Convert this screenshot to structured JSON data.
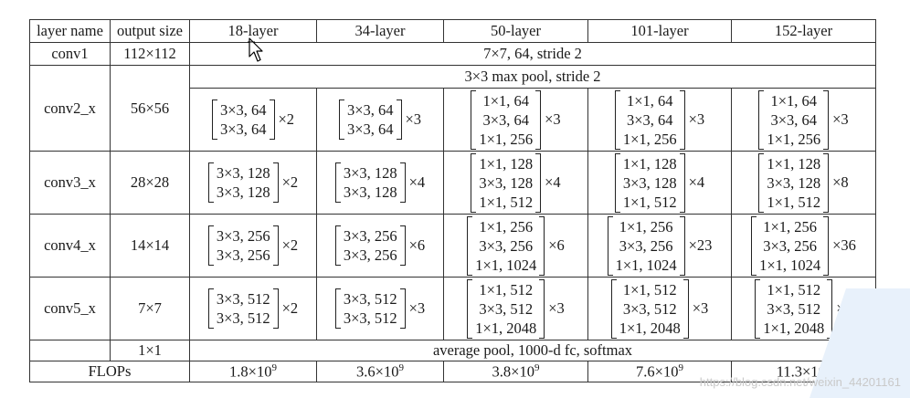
{
  "headers": [
    "layer name",
    "output size",
    "18-layer",
    "34-layer",
    "50-layer",
    "101-layer",
    "152-layer"
  ],
  "conv1": {
    "name": "conv1",
    "size": "112×112",
    "desc": "7×7, 64, stride 2"
  },
  "pool": {
    "desc": "3×3 max pool, stride 2"
  },
  "stages": [
    {
      "name": "conv2_x",
      "size": "56×56",
      "cells": [
        {
          "lines": [
            "3×3, 64",
            "3×3, 64"
          ],
          "mult": "×2"
        },
        {
          "lines": [
            "3×3, 64",
            "3×3, 64"
          ],
          "mult": "×3"
        },
        {
          "lines": [
            "1×1, 64",
            "3×3, 64",
            "1×1, 256"
          ],
          "mult": "×3"
        },
        {
          "lines": [
            "1×1, 64",
            "3×3, 64",
            "1×1, 256"
          ],
          "mult": "×3"
        },
        {
          "lines": [
            "1×1, 64",
            "3×3, 64",
            "1×1, 256"
          ],
          "mult": "×3"
        }
      ]
    },
    {
      "name": "conv3_x",
      "size": "28×28",
      "cells": [
        {
          "lines": [
            "3×3, 128",
            "3×3, 128"
          ],
          "mult": "×2"
        },
        {
          "lines": [
            "3×3, 128",
            "3×3, 128"
          ],
          "mult": "×4"
        },
        {
          "lines": [
            "1×1, 128",
            "3×3, 128",
            "1×1, 512"
          ],
          "mult": "×4"
        },
        {
          "lines": [
            "1×1, 128",
            "3×3, 128",
            "1×1, 512"
          ],
          "mult": "×4"
        },
        {
          "lines": [
            "1×1, 128",
            "3×3, 128",
            "1×1, 512"
          ],
          "mult": "×8"
        }
      ]
    },
    {
      "name": "conv4_x",
      "size": "14×14",
      "cells": [
        {
          "lines": [
            "3×3, 256",
            "3×3, 256"
          ],
          "mult": "×2"
        },
        {
          "lines": [
            "3×3, 256",
            "3×3, 256"
          ],
          "mult": "×6"
        },
        {
          "lines": [
            "1×1, 256",
            "3×3, 256",
            "1×1, 1024"
          ],
          "mult": "×6"
        },
        {
          "lines": [
            "1×1, 256",
            "3×3, 256",
            "1×1, 1024"
          ],
          "mult": "×23"
        },
        {
          "lines": [
            "1×1, 256",
            "3×3, 256",
            "1×1, 1024"
          ],
          "mult": "×36"
        }
      ]
    },
    {
      "name": "conv5_x",
      "size": "7×7",
      "cells": [
        {
          "lines": [
            "3×3, 512",
            "3×3, 512"
          ],
          "mult": "×2"
        },
        {
          "lines": [
            "3×3, 512",
            "3×3, 512"
          ],
          "mult": "×3"
        },
        {
          "lines": [
            "1×1, 512",
            "3×3, 512",
            "1×1, 2048"
          ],
          "mult": "×3"
        },
        {
          "lines": [
            "1×1, 512",
            "3×3, 512",
            "1×1, 2048"
          ],
          "mult": "×3"
        },
        {
          "lines": [
            "1×1, 512",
            "3×3, 512",
            "1×1, 2048"
          ],
          "mult": "×3"
        }
      ]
    }
  ],
  "avg": {
    "size": "1×1",
    "desc": "average pool, 1000-d fc, softmax"
  },
  "flops": {
    "label": "FLOPs",
    "values": [
      {
        "base": "1.8×10",
        "exp": "9"
      },
      {
        "base": "3.6×10",
        "exp": "9"
      },
      {
        "base": "3.8×10",
        "exp": "9"
      },
      {
        "base": "7.6×10",
        "exp": "9"
      },
      {
        "base": "11.3×10",
        "exp": "9"
      }
    ]
  },
  "watermark": "https://blog.csdn.net/weixin_44201161",
  "colors": {
    "border": "#333333",
    "text": "#1a1a1a",
    "watermark": "#c9c9c9",
    "corner": "#e8f1fb"
  }
}
